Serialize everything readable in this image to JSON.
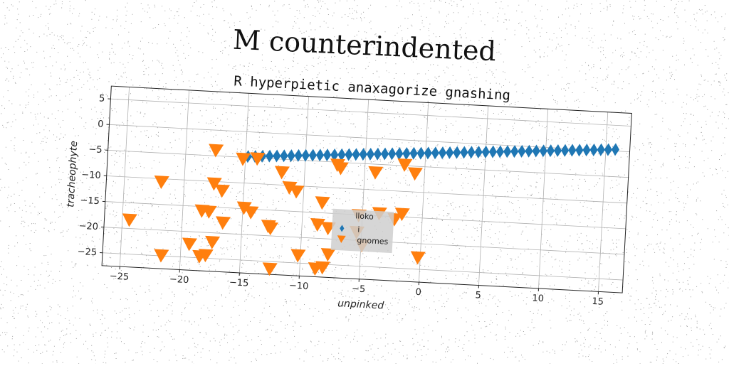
{
  "title": "M counterindented",
  "chart_data": {
    "type": "scatter",
    "subtitle": "R hyperpietic anaxagorize gnashing",
    "xlabel": "unpinked",
    "ylabel": "tracheophyte",
    "xlim": [
      -26.5,
      17
    ],
    "ylim": [
      -27.5,
      7.5
    ],
    "xticks": [
      -25,
      -20,
      -15,
      -10,
      -5,
      0,
      5,
      10,
      15
    ],
    "yticks": [
      5,
      0,
      -5,
      -10,
      -15,
      -20,
      -25
    ],
    "grid": true,
    "legend": {
      "title": "lloko",
      "placement": "lower-center"
    },
    "series": [
      {
        "name": "i",
        "marker": "diamond",
        "color": "#1f77b4",
        "x": [
          -14.8,
          -14.2,
          -13.6,
          -13.0,
          -12.4,
          -11.8,
          -11.2,
          -10.6,
          -10.0,
          -9.4,
          -8.8,
          -8.2,
          -7.6,
          -7.0,
          -6.4,
          -5.8,
          -5.2,
          -4.6,
          -4.0,
          -3.4,
          -2.8,
          -2.2,
          -1.6,
          -1.0,
          -0.4,
          0.2,
          0.8,
          1.4,
          2.0,
          2.6,
          3.2,
          3.8,
          4.4,
          5.0,
          5.6,
          6.2,
          6.8,
          7.4,
          8.0,
          8.6,
          9.2,
          9.8,
          10.4,
          11.0,
          11.6,
          12.2,
          12.8,
          13.4,
          14.0,
          14.6,
          15.2,
          15.8
        ],
        "y": [
          -4.8,
          -4.7,
          -4.6,
          -4.5,
          -4.4,
          -4.3,
          -4.2,
          -4.1,
          -4.0,
          -3.9,
          -3.8,
          -3.7,
          -3.6,
          -3.5,
          -3.4,
          -3.3,
          -3.2,
          -3.1,
          -3.0,
          -2.9,
          -2.8,
          -2.7,
          -2.6,
          -2.5,
          -2.4,
          -2.3,
          -2.2,
          -2.1,
          -2.0,
          -1.9,
          -1.8,
          -1.7,
          -1.6,
          -1.5,
          -1.4,
          -1.3,
          -1.2,
          -1.1,
          -1.0,
          -0.9,
          -0.8,
          -0.7,
          -0.6,
          -0.5,
          -0.4,
          -0.3,
          -0.2,
          -0.1,
          0.0,
          0.1,
          0.2,
          0.3
        ]
      },
      {
        "name": "gnomes",
        "marker": "triangle-down",
        "color": "#ff7f0e",
        "x": [
          -17.5,
          -15.2,
          -14.0,
          -7.3,
          -7.0,
          -4.1,
          -1.7,
          -0.8,
          -21.9,
          -17.5,
          -11.9,
          -11.2,
          -10.6,
          -16.8,
          -14.9,
          -14.3,
          -8.4,
          -5.3,
          -3.6,
          -2.3,
          -1.7,
          -17.8,
          -18.4,
          -16.6,
          -24.4,
          -12.8,
          -12.6,
          -8.7,
          -7.8,
          -5.4,
          -7.7,
          -4.9,
          -19.3,
          -17.4,
          -21.6,
          -18.4,
          -17.9,
          -10.2,
          -8.1,
          -0.2,
          -12.5,
          -8.7
        ],
        "y": [
          -3.9,
          -5.3,
          -5.1,
          -5.5,
          -6.1,
          -6.6,
          -4.8,
          -6.4,
          -10.6,
          -10.4,
          -7.5,
          -10.4,
          -11.1,
          -11.7,
          -14.8,
          -15.6,
          -13.0,
          -15.1,
          -14.5,
          -15.5,
          -14.4,
          -15.9,
          -15.8,
          -17.9,
          -18.3,
          -18.1,
          -18.5,
          -17.3,
          -17.9,
          -18.4,
          -23.0,
          -20.9,
          -22.4,
          -21.8,
          -24.9,
          -24.7,
          -24.4,
          -23.5,
          -25.6,
          -22.7,
          -26.4,
          -25.9
        ]
      }
    ]
  }
}
